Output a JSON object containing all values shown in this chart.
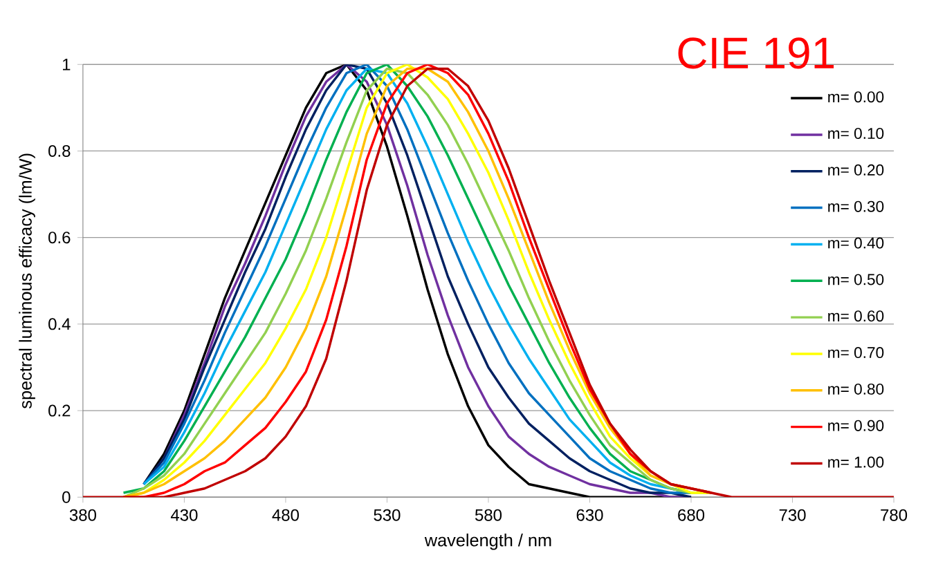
{
  "chart_data": {
    "type": "line",
    "annotations": [
      "CIE 191"
    ],
    "xlabel": "wavelength / nm",
    "ylabel": "spectral luminous efficacy (lm/W)",
    "x": [
      380,
      390,
      400,
      410,
      420,
      430,
      440,
      450,
      460,
      470,
      480,
      490,
      500,
      510,
      520,
      530,
      540,
      550,
      560,
      570,
      580,
      590,
      600,
      610,
      620,
      630,
      640,
      650,
      660,
      670,
      680,
      690,
      700,
      780
    ],
    "series": [
      {
        "name": "m= 0.00",
        "color": "#000000",
        "values": [
          null,
          null,
          null,
          0.03,
          0.1,
          0.2,
          0.33,
          0.46,
          0.57,
          0.68,
          0.79,
          0.9,
          0.98,
          1.0,
          0.94,
          0.81,
          0.65,
          0.48,
          0.33,
          0.21,
          0.12,
          0.07,
          0.03,
          0.02,
          0.01,
          0,
          0,
          0,
          0,
          0,
          0,
          null,
          null,
          null
        ]
      },
      {
        "name": "m= 0.10",
        "color": "#7030a0",
        "values": [
          null,
          null,
          null,
          0.03,
          0.09,
          0.19,
          0.31,
          0.44,
          0.54,
          0.65,
          0.77,
          0.88,
          0.96,
          1.0,
          0.96,
          0.86,
          0.72,
          0.56,
          0.42,
          0.3,
          0.21,
          0.14,
          0.1,
          0.07,
          0.05,
          0.03,
          0.02,
          0.01,
          0.01,
          0,
          0,
          null,
          null,
          null
        ]
      },
      {
        "name": "m= 0.20",
        "color": "#002060",
        "values": [
          null,
          null,
          null,
          0.03,
          0.09,
          0.18,
          0.3,
          0.41,
          0.52,
          0.62,
          0.74,
          0.85,
          0.94,
          1.0,
          0.99,
          0.91,
          0.79,
          0.65,
          0.51,
          0.4,
          0.3,
          0.23,
          0.17,
          0.13,
          0.09,
          0.06,
          0.04,
          0.02,
          0.01,
          0.01,
          0,
          null,
          null,
          null
        ]
      },
      {
        "name": "m= 0.30",
        "color": "#0070c0",
        "values": [
          null,
          null,
          null,
          0.03,
          0.08,
          0.17,
          0.27,
          0.38,
          0.48,
          0.58,
          0.69,
          0.8,
          0.9,
          0.98,
          1.0,
          0.95,
          0.85,
          0.73,
          0.61,
          0.5,
          0.4,
          0.31,
          0.24,
          0.19,
          0.14,
          0.09,
          0.06,
          0.04,
          0.02,
          0.01,
          0.01,
          null,
          null,
          null
        ]
      },
      {
        "name": "m= 0.40",
        "color": "#00b0f0",
        "values": [
          null,
          null,
          null,
          0.03,
          0.07,
          0.15,
          0.24,
          0.34,
          0.43,
          0.52,
          0.63,
          0.74,
          0.85,
          0.94,
          0.99,
          0.98,
          0.91,
          0.81,
          0.7,
          0.59,
          0.49,
          0.4,
          0.32,
          0.25,
          0.18,
          0.13,
          0.08,
          0.05,
          0.03,
          0.02,
          0.01,
          null,
          null,
          null
        ]
      },
      {
        "name": "m= 0.50",
        "color": "#00b050",
        "values": [
          null,
          null,
          0.01,
          0.02,
          0.06,
          0.13,
          0.21,
          0.29,
          0.37,
          0.46,
          0.55,
          0.66,
          0.78,
          0.89,
          0.98,
          1.0,
          0.95,
          0.88,
          0.79,
          0.69,
          0.59,
          0.49,
          0.4,
          0.31,
          0.23,
          0.16,
          0.1,
          0.06,
          0.04,
          0.02,
          0.01,
          null,
          null,
          null
        ]
      },
      {
        "name": "m= 0.60",
        "color": "#92d050",
        "values": [
          null,
          null,
          0,
          0.02,
          0.05,
          0.1,
          0.17,
          0.24,
          0.31,
          0.38,
          0.47,
          0.57,
          0.69,
          0.82,
          0.94,
          0.99,
          0.98,
          0.93,
          0.86,
          0.77,
          0.67,
          0.57,
          0.46,
          0.36,
          0.27,
          0.19,
          0.12,
          0.08,
          0.04,
          0.02,
          0.01,
          0.01,
          null,
          null
        ]
      },
      {
        "name": "m= 0.70",
        "color": "#ffff00",
        "values": [
          null,
          null,
          0,
          0.01,
          0.04,
          0.08,
          0.13,
          0.19,
          0.25,
          0.31,
          0.39,
          0.48,
          0.6,
          0.75,
          0.9,
          0.98,
          1.0,
          0.97,
          0.92,
          0.84,
          0.75,
          0.64,
          0.52,
          0.41,
          0.31,
          0.22,
          0.14,
          0.09,
          0.05,
          0.03,
          0.01,
          0.01,
          null,
          null
        ]
      },
      {
        "name": "m= 0.80",
        "color": "#ffc000",
        "values": [
          null,
          null,
          0,
          0.01,
          0.03,
          0.06,
          0.09,
          0.13,
          0.18,
          0.23,
          0.3,
          0.39,
          0.51,
          0.67,
          0.84,
          0.95,
          0.99,
          0.99,
          0.96,
          0.89,
          0.8,
          0.69,
          0.57,
          0.45,
          0.34,
          0.24,
          0.16,
          0.1,
          0.05,
          0.03,
          0.02,
          0.01,
          null,
          null
        ]
      },
      {
        "name": "m= 0.90",
        "color": "#ff0000",
        "values": [
          null,
          null,
          0,
          0,
          0.01,
          0.03,
          0.06,
          0.08,
          0.12,
          0.16,
          0.22,
          0.29,
          0.41,
          0.58,
          0.78,
          0.91,
          0.98,
          1.0,
          0.98,
          0.93,
          0.84,
          0.73,
          0.6,
          0.48,
          0.36,
          0.25,
          0.17,
          0.1,
          0.06,
          0.03,
          0.02,
          0.01,
          null,
          null
        ]
      },
      {
        "name": "m= 1.00",
        "color": "#c00000",
        "values": [
          0,
          0,
          0,
          0,
          0,
          0.01,
          0.02,
          0.04,
          0.06,
          0.09,
          0.14,
          0.21,
          0.32,
          0.5,
          0.71,
          0.86,
          0.95,
          0.99,
          0.99,
          0.95,
          0.87,
          0.76,
          0.63,
          0.5,
          0.38,
          0.26,
          0.17,
          0.11,
          0.06,
          0.03,
          0.02,
          0.01,
          0,
          0
        ]
      }
    ],
    "xlim": [
      380,
      780
    ],
    "xticks": [
      380,
      430,
      480,
      530,
      580,
      630,
      680,
      730,
      780
    ],
    "ylim": [
      0,
      1
    ],
    "yticks": [
      0,
      0.2,
      0.4,
      0.6,
      0.8,
      1
    ],
    "grid": "y",
    "legend": "right"
  }
}
